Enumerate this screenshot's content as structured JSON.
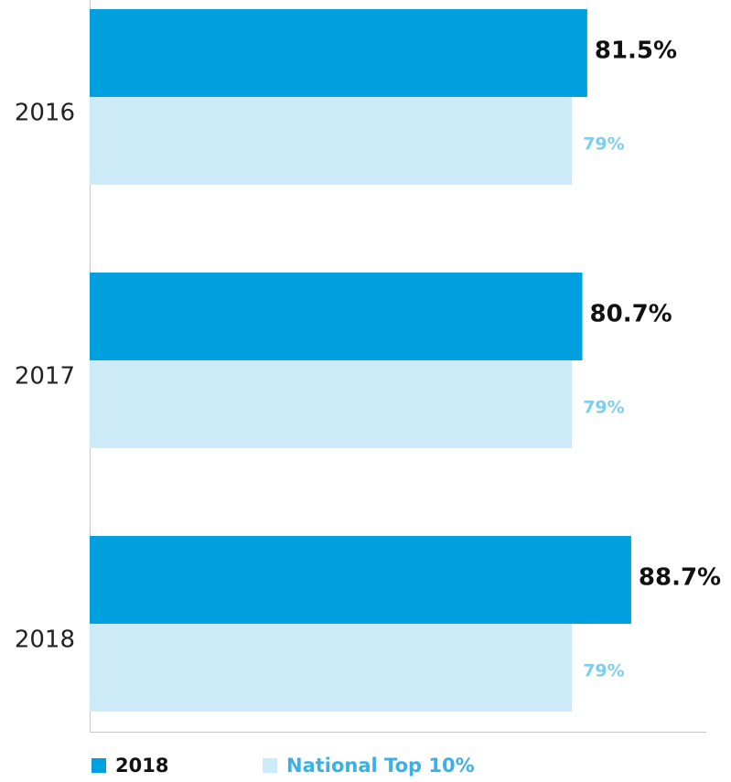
{
  "chart_data": {
    "type": "hbar",
    "categories": [
      "2016",
      "2017",
      "2018"
    ],
    "series": [
      {
        "name": "2018",
        "color": "#009fdf",
        "values": [
          81.5,
          80.7,
          88.7
        ],
        "value_labels": [
          "81.5%",
          "80.7%",
          "88.7%"
        ]
      },
      {
        "name": "National Top 10%",
        "color": "#cdeaf8",
        "values": [
          79,
          79,
          79
        ],
        "value_labels": [
          "79%",
          "79%",
          "79%"
        ]
      }
    ],
    "xlim": [
      0,
      101
    ]
  }
}
